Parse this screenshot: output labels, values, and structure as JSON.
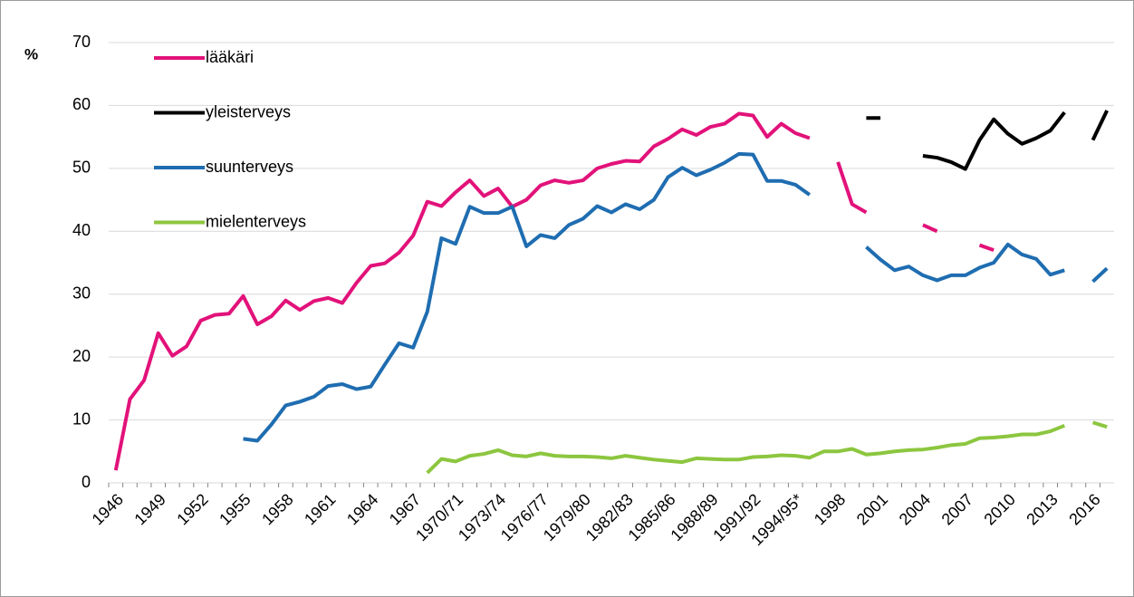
{
  "chart_data": {
    "type": "line",
    "y_label": "%",
    "categories": [
      "1946",
      null,
      null,
      "1949",
      null,
      null,
      "1952",
      null,
      null,
      "1955",
      null,
      null,
      "1958",
      null,
      null,
      "1961",
      null,
      null,
      "1964",
      null,
      null,
      "1967",
      null,
      null,
      "1970/71",
      null,
      null,
      "1973/74",
      null,
      null,
      "1976/77",
      null,
      null,
      "1979/80",
      null,
      null,
      "1982/83",
      null,
      null,
      "1985/86",
      null,
      null,
      "1988/89",
      null,
      null,
      "1991/92",
      null,
      null,
      "1994/95*",
      null,
      null,
      "1998",
      null,
      null,
      "2001",
      null,
      null,
      "2004",
      null,
      null,
      "2007",
      null,
      null,
      "2010",
      null,
      null,
      "2013",
      null,
      null,
      "2016",
      null
    ],
    "series": [
      {
        "name": "lääkäri",
        "color": "#e2127a",
        "values": [
          2,
          13.3,
          16.3,
          23.8,
          20.2,
          21.7,
          25.8,
          26.7,
          26.9,
          29.7,
          25.2,
          26.5,
          29,
          27.5,
          28.9,
          29.4,
          28.6,
          31.8,
          34.5,
          34.9,
          36.6,
          39.3,
          44.7,
          44,
          46.2,
          48.1,
          45.6,
          46.8,
          43.9,
          45,
          47.3,
          48.1,
          47.7,
          48.1,
          50,
          50.7,
          51.2,
          51.1,
          53.5,
          54.7,
          56.2,
          55.3,
          56.6,
          57.1,
          58.7,
          58.4,
          55,
          57.1,
          55.6,
          54.8,
          null,
          51,
          44.3,
          43,
          null,
          null,
          null,
          41,
          40,
          null,
          null,
          37.8,
          37,
          null,
          null,
          null,
          null,
          null,
          null,
          null,
          null
        ]
      },
      {
        "name": "yleisterveys",
        "color": "#000000",
        "values": [
          null,
          null,
          null,
          null,
          null,
          null,
          null,
          null,
          null,
          null,
          null,
          null,
          null,
          null,
          null,
          null,
          null,
          null,
          null,
          null,
          null,
          null,
          null,
          null,
          null,
          null,
          null,
          null,
          null,
          null,
          null,
          null,
          null,
          null,
          null,
          null,
          null,
          null,
          null,
          null,
          null,
          null,
          null,
          null,
          null,
          null,
          null,
          null,
          null,
          null,
          null,
          null,
          null,
          58,
          58,
          null,
          null,
          52,
          51.7,
          51,
          49.9,
          54.5,
          57.8,
          55.5,
          53.9,
          54.8,
          56,
          58.9,
          null,
          54.5,
          59.2
        ]
      },
      {
        "name": "suunterveys",
        "color": "#1f6db1",
        "values": [
          null,
          null,
          null,
          null,
          null,
          null,
          null,
          null,
          null,
          7,
          6.7,
          9.3,
          12.3,
          12.9,
          13.7,
          15.4,
          15.7,
          14.9,
          15.3,
          18.8,
          22.2,
          21.5,
          27.2,
          38.9,
          38,
          43.9,
          42.9,
          42.9,
          43.9,
          37.6,
          39.4,
          38.9,
          41,
          42,
          44,
          43,
          44.3,
          43.5,
          45,
          48.6,
          50.1,
          48.9,
          49.8,
          50.9,
          52.3,
          52.2,
          48,
          48,
          47.4,
          45.8,
          null,
          null,
          null,
          37.5,
          35.5,
          33.8,
          34.4,
          33,
          32.2,
          33,
          33,
          34.2,
          35,
          37.9,
          36.3,
          35.6,
          33.1,
          33.8,
          null,
          32,
          34.1
        ]
      },
      {
        "name": "mielenterveys",
        "color": "#8cc63f",
        "values": [
          null,
          null,
          null,
          null,
          null,
          null,
          null,
          null,
          null,
          null,
          null,
          null,
          null,
          null,
          null,
          null,
          null,
          null,
          null,
          null,
          null,
          null,
          1.6,
          3.8,
          3.4,
          4.3,
          4.6,
          5.2,
          4.4,
          4.2,
          4.7,
          4.3,
          4.2,
          4.2,
          4.1,
          3.9,
          4.3,
          4,
          3.7,
          3.5,
          3.3,
          3.9,
          3.8,
          3.7,
          3.7,
          4.1,
          4.2,
          4.4,
          4.3,
          4,
          5,
          5,
          5.4,
          4.5,
          4.7,
          5,
          5.2,
          5.3,
          5.6,
          6,
          6.2,
          7.1,
          7.2,
          7.4,
          7.7,
          7.7,
          8.2,
          9.1,
          null,
          9.6,
          8.9
        ]
      }
    ],
    "ylim": [
      0,
      70
    ],
    "yticks": [
      0,
      10,
      20,
      30,
      40,
      50,
      60,
      70
    ],
    "grid": true,
    "legend": "top-left"
  }
}
